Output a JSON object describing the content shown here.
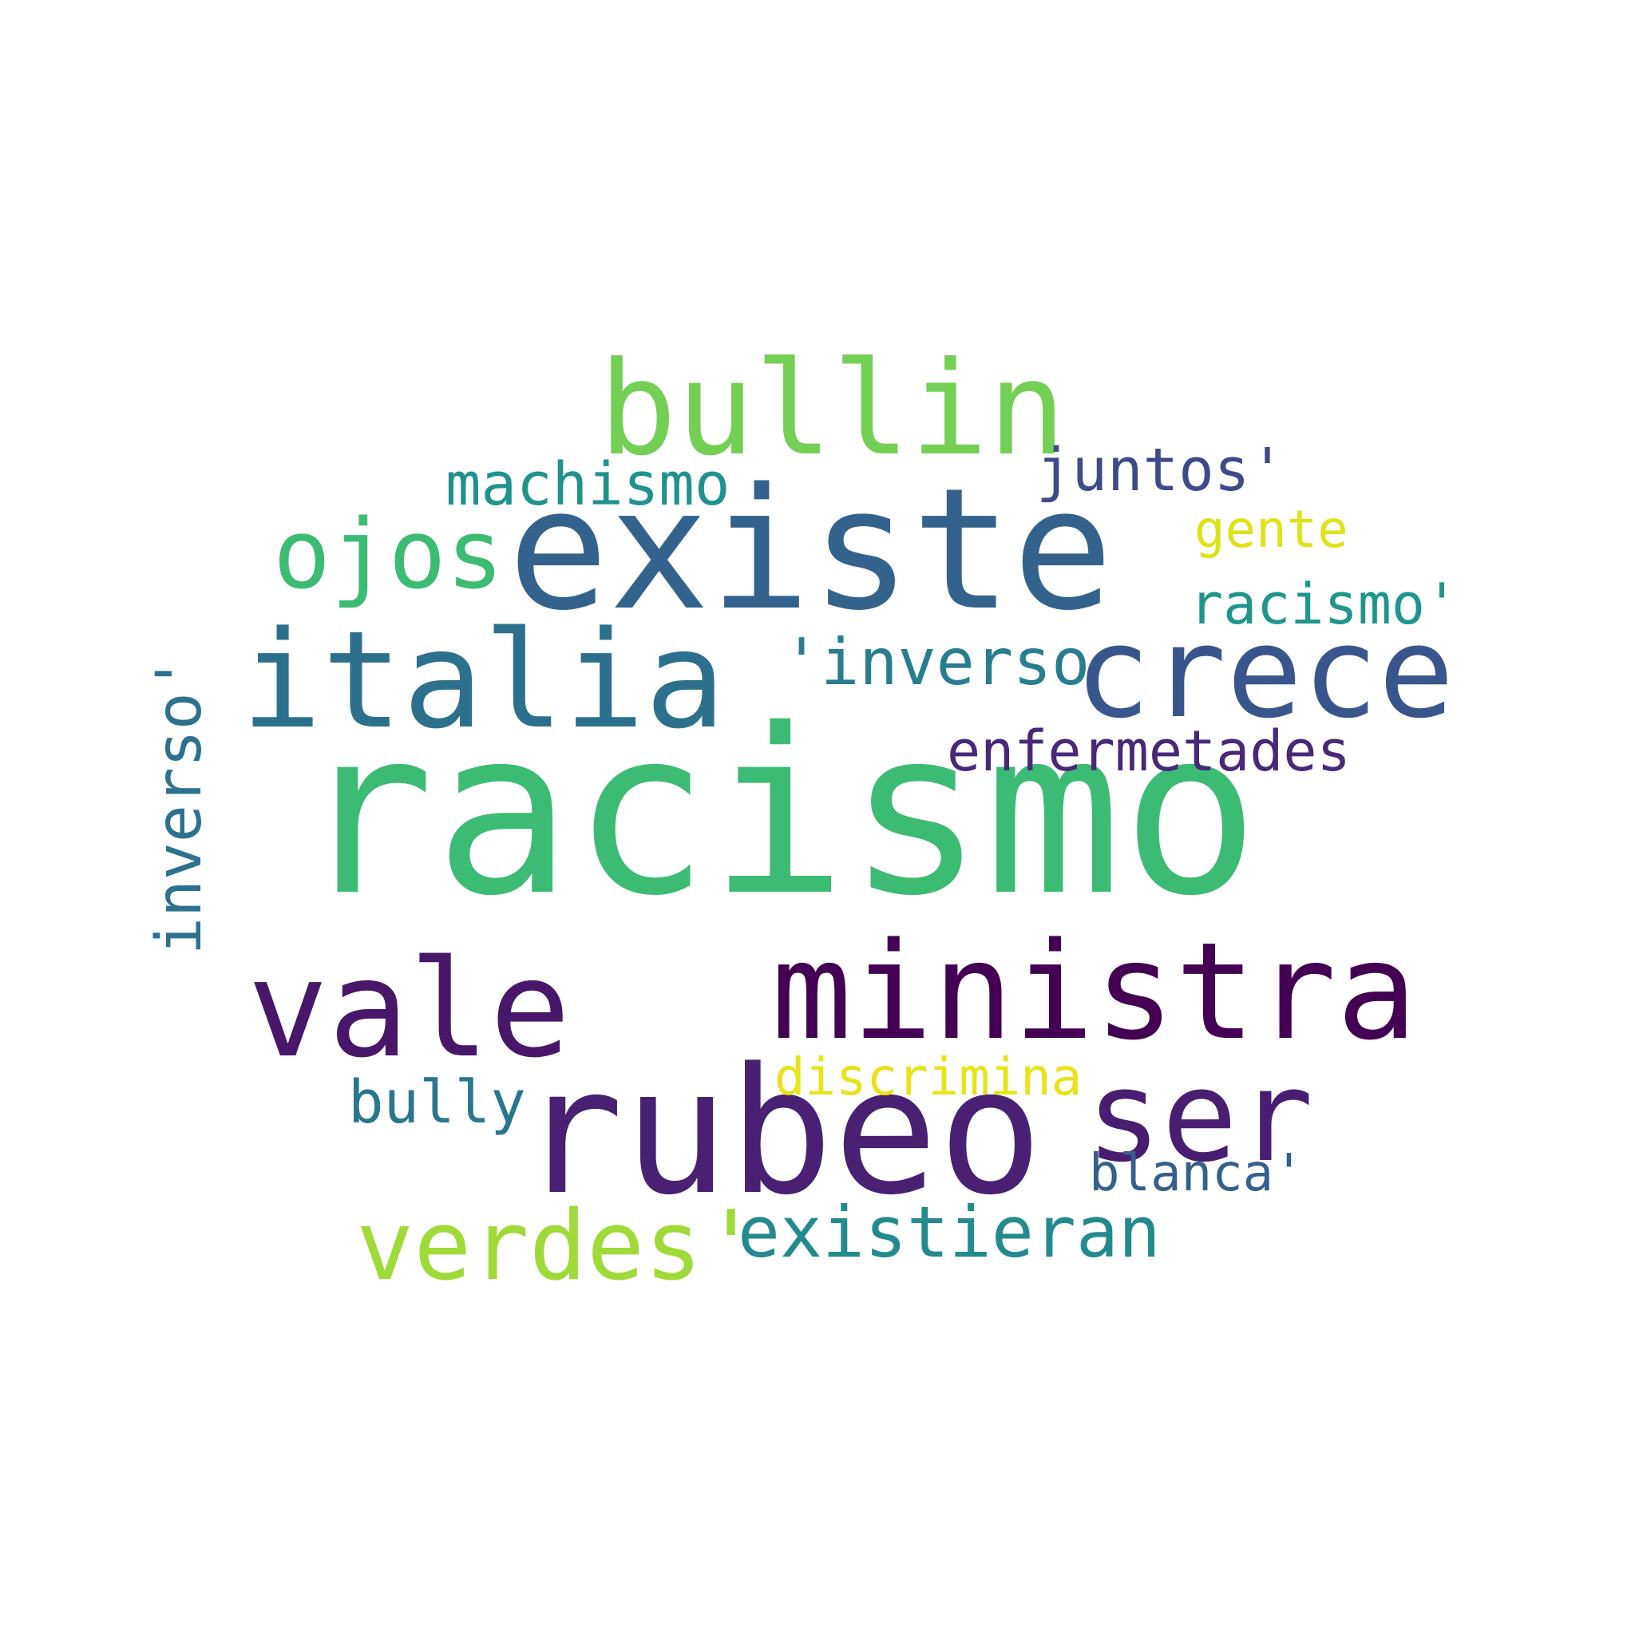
{
  "words": [
    {
      "id": "racismo",
      "text": "racismo",
      "color": "#3cbb75"
    },
    {
      "id": "existe",
      "text": "existe",
      "color": "#33638d"
    },
    {
      "id": "rubeo",
      "text": "rubeo",
      "color": "#482173"
    },
    {
      "id": "ministra",
      "text": "ministra",
      "color": "#440154"
    },
    {
      "id": "italia",
      "text": "italia",
      "color": "#2d708e"
    },
    {
      "id": "vale",
      "text": "vale",
      "color": "#481769"
    },
    {
      "id": "bullin",
      "text": "bullin",
      "color": "#73d055"
    },
    {
      "id": "crece",
      "text": "crece",
      "color": "#39568c"
    },
    {
      "id": "ser",
      "text": "ser",
      "color": "#481f70"
    },
    {
      "id": "ojos",
      "text": "ojos",
      "color": "#3cbb75"
    },
    {
      "id": "verdes",
      "text": "verdes'",
      "color": "#a0da39"
    },
    {
      "id": "existieran",
      "text": "existieran",
      "color": "#238a8d"
    },
    {
      "id": "enfermetades",
      "text": "enfermetades",
      "color": "#482878"
    },
    {
      "id": "inverso1",
      "text": "'inverso",
      "color": "#287d8e"
    },
    {
      "id": "machismo",
      "text": "machismo",
      "color": "#20928c"
    },
    {
      "id": "juntos",
      "text": "juntos'",
      "color": "#3e4a89"
    },
    {
      "id": "racismo2",
      "text": "racismo'",
      "color": "#1f968b"
    },
    {
      "id": "gente",
      "text": "gente",
      "color": "#dde318"
    },
    {
      "id": "discrimina",
      "text": "discrimina",
      "color": "#e7e419"
    },
    {
      "id": "bully",
      "text": "bully",
      "color": "#2a768e"
    },
    {
      "id": "blanca",
      "text": "blanca'",
      "color": "#355f8d"
    },
    {
      "id": "inverso2",
      "text": "inverso'",
      "color": "#2c728e"
    }
  ]
}
